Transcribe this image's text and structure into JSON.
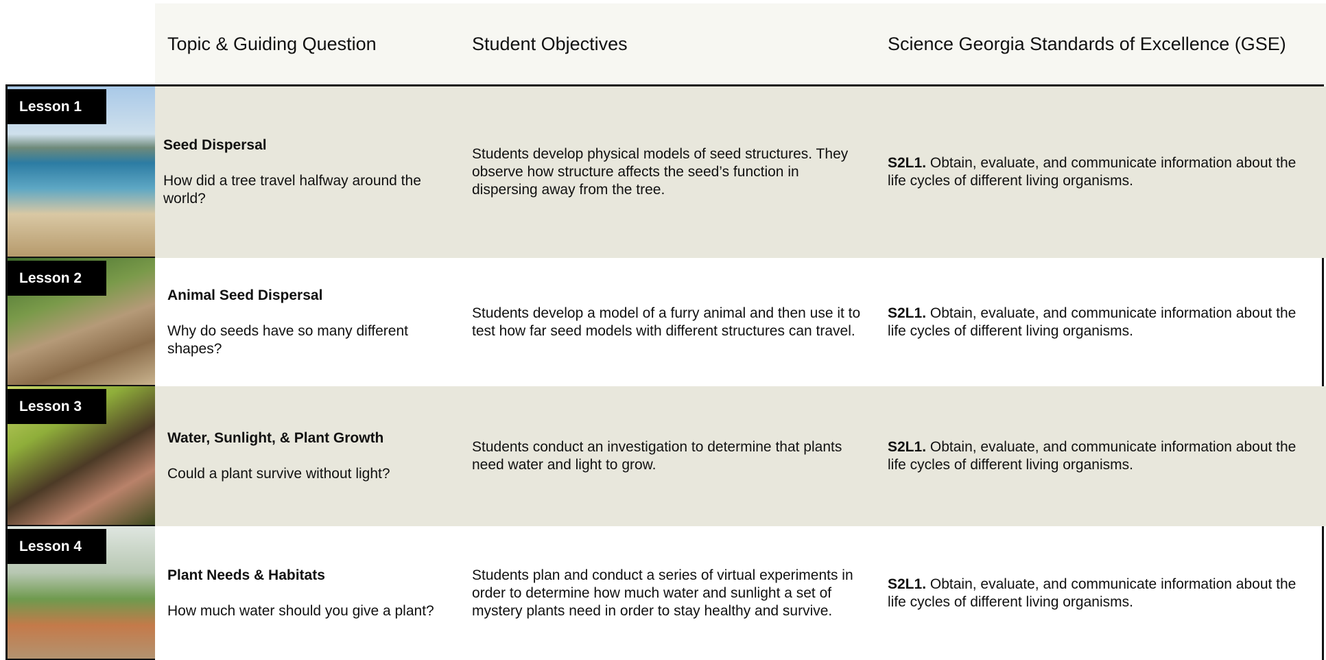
{
  "header": {
    "columns": [
      "Topic & Guiding Question",
      "Student Objectives",
      "Science Georgia Standards of Excellence (GSE)"
    ]
  },
  "rows": [
    {
      "lesson": "Lesson 1",
      "topic": "Seed Dispersal",
      "question": "How did a tree travel halfway around the world?",
      "objective": "Students develop physical models of seed structures. They observe how structure affects the seed’s function in dispersing away from the tree.",
      "standard_code": "S2L1.",
      "standard_text": "Obtain, evaluate, and communicate information about the life cycles of different living organisms."
    },
    {
      "lesson": "Lesson 2",
      "topic": "Animal Seed Dispersal",
      "question": "Why do seeds have so many different shapes?",
      "objective": "Students develop a model of a furry animal and then use it to test how far seed models with different structures can travel.",
      "standard_code": "S2L1.",
      "standard_text": "Obtain, evaluate, and communicate information about the life cycles of different living organisms."
    },
    {
      "lesson": "Lesson 3",
      "topic": "Water, Sunlight, & Plant Growth",
      "question": "Could a plant survive without light?",
      "objective": "Students conduct an investigation to determine that plants need water and light to grow.",
      "standard_code": "S2L1.",
      "standard_text": "Obtain, evaluate, and communicate information about the life cycles of different living organisms."
    },
    {
      "lesson": "Lesson 4",
      "topic": "Plant Needs & Habitats",
      "question": "How much water should you give a plant?",
      "objective": "Students  plan and conduct a series of virtual experiments in order to determine how much water and sunlight a set of mystery plants need in order to stay healthy and survive.",
      "standard_code": "S2L1.",
      "standard_text": "Obtain, evaluate, and communicate information about the life cycles of different living organisms."
    }
  ]
}
